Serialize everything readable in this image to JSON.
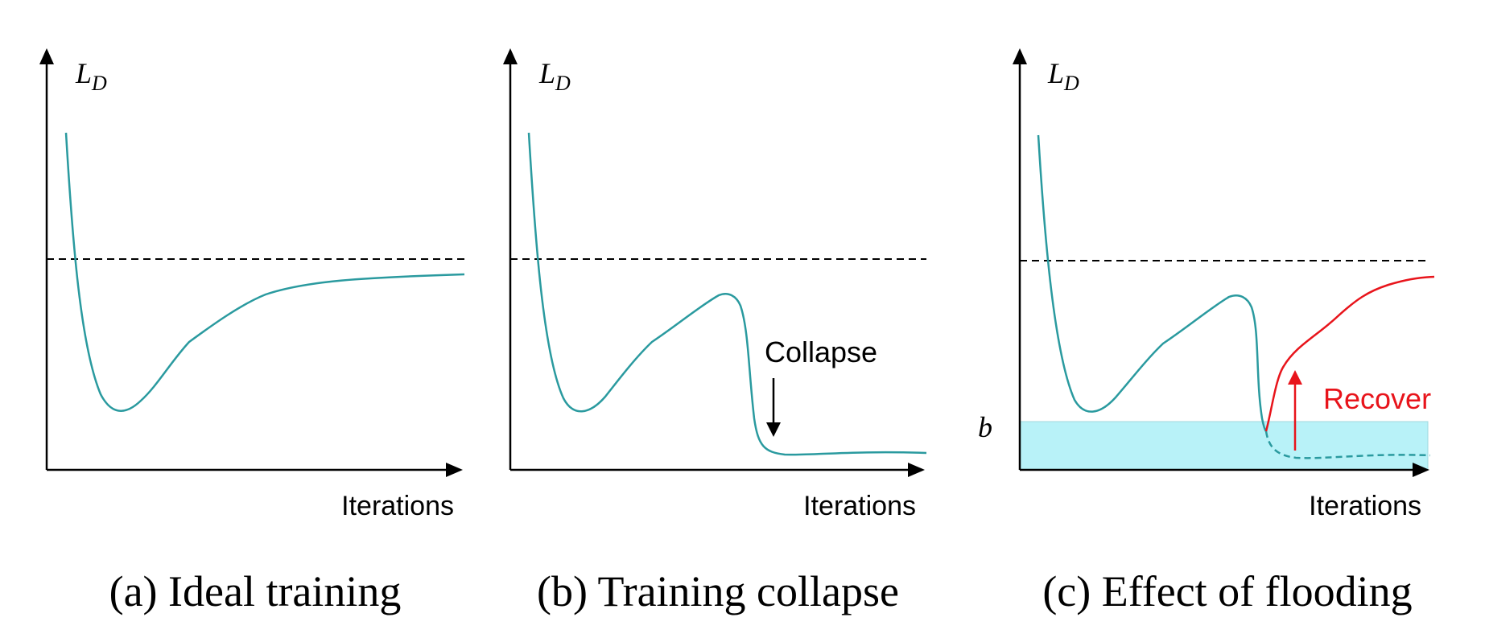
{
  "panels": [
    {
      "id": "a",
      "caption": "(a) Ideal training",
      "ylabel": "L",
      "ylabel_sub": "D",
      "xlabel": "Iterations"
    },
    {
      "id": "b",
      "caption": "(b) Training collapse",
      "ylabel": "L",
      "ylabel_sub": "D",
      "xlabel": "Iterations",
      "annotation": "Collapse"
    },
    {
      "id": "c",
      "caption": "(c) Effect of flooding",
      "ylabel": "L",
      "ylabel_sub": "D",
      "xlabel": "Iterations",
      "annotation": "Recover",
      "flood_label": "b"
    }
  ],
  "colors": {
    "curve": "#2a9a9f",
    "recover": "#e8141b",
    "flood_fill": "#b8f2f8",
    "axis": "#000000"
  }
}
